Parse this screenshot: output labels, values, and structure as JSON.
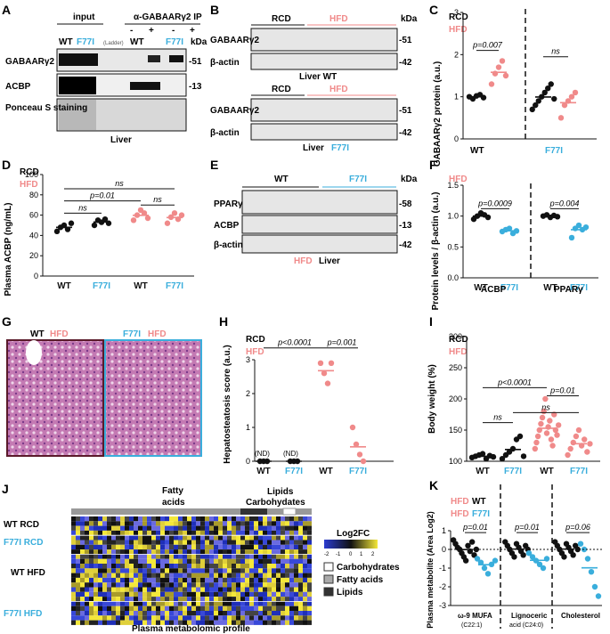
{
  "panels": {
    "A": {
      "letter": "A",
      "input": "input",
      "ip": "α-GABAARγ2 IP",
      "wt": "WT",
      "f77i": "F77I",
      "ladder": "(Ladder)",
      "kda": "kDa",
      "minus": "-",
      "plus": "+",
      "rows": [
        "GABAARγ2",
        "ACBP",
        "Ponceau S staining"
      ],
      "marks": [
        "-51",
        "-13"
      ],
      "bottom": "Liver"
    },
    "B": {
      "letter": "B",
      "rcd": "RCD",
      "hfd": "HFD",
      "kda": "kDa",
      "rows": [
        "GABAARγ2",
        "β-actin"
      ],
      "marks": [
        "-51",
        "-42"
      ],
      "top_label": "Liver WT",
      "bottom_label_a": "Liver",
      "bottom_label_b": "F77I"
    },
    "C": {
      "letter": "C",
      "legend": [
        "RCD",
        "HFD"
      ],
      "ylabel": "GABAARγ2 protein (a.u.)",
      "yticks": [
        "0",
        "1",
        "2",
        "3"
      ],
      "groups": [
        "WT",
        "F77I"
      ],
      "stats": [
        "p=0.007",
        "ns"
      ]
    },
    "D": {
      "letter": "D",
      "legend": [
        "RCD",
        "HFD"
      ],
      "ylabel": "Plasma ACBP (ng/mL)",
      "yticks": [
        "0",
        "20",
        "40",
        "60",
        "80",
        "100"
      ],
      "xlabels": [
        "WT",
        "F77I",
        "WT",
        "F77I"
      ],
      "stats": [
        "p=0.01",
        "ns",
        "ns",
        "ns"
      ]
    },
    "E": {
      "letter": "E",
      "wt": "WT",
      "f77i": "F77I",
      "kda": "kDa",
      "rows": [
        "PPARγ",
        "ACBP",
        "β-actin"
      ],
      "marks": [
        "-58",
        "-13",
        "-42"
      ],
      "bottom_a": "HFD",
      "bottom_b": "Liver"
    },
    "F": {
      "letter": "F",
      "legend": "HFD",
      "ylabel": "Protein levels / β-actin (a.u.)",
      "yticks": [
        "0.0",
        "0.5",
        "1.0",
        "1.5"
      ],
      "groups": [
        "ACBP",
        "PPARγ"
      ],
      "xlabels": [
        "WT",
        "F77I",
        "WT",
        "F77I"
      ],
      "stats": [
        "p=0.0009",
        "p=0.004"
      ]
    },
    "G": {
      "letter": "G",
      "left_a": "WT",
      "left_b": "HFD",
      "right_a": "F77I",
      "right_b": "HFD"
    },
    "H": {
      "letter": "H",
      "legend": [
        "RCD",
        "HFD"
      ],
      "ylabel": "Hepatosteatosis score (a.u.)",
      "yticks": [
        "0",
        "1",
        "2",
        "3"
      ],
      "xlabels": [
        "WT",
        "F77I",
        "WT",
        "F77I"
      ],
      "nd": "(ND)",
      "stats": [
        "p<0.0001",
        "p=0.001"
      ]
    },
    "I": {
      "letter": "I",
      "legend": [
        "RCD",
        "HFD"
      ],
      "ylabel": "Body weight (%)",
      "yticks": [
        "100",
        "150",
        "200",
        "250",
        "300"
      ],
      "xlabels": [
        "WT",
        "F77I",
        "WT",
        "F77I"
      ],
      "stats": [
        "p<0.0001",
        "p=0.01",
        "ns",
        "ns"
      ]
    },
    "J": {
      "letter": "J",
      "top1": "Fatty",
      "top2": "acids",
      "top3": "Lipids",
      "top4": "Carbohydates",
      "rows": [
        "WT RCD",
        "F77I RCD",
        "WT HFD",
        "F77I HFD"
      ],
      "legend_title": "Log2FC",
      "scale": [
        "-2",
        "-1",
        "0",
        "1",
        "2"
      ],
      "legend_items": [
        "Carbohydrates",
        "Fatty acids",
        "Lipids"
      ],
      "bottom": "Plasma metabolomic profile"
    },
    "K": {
      "letter": "K",
      "legend": [
        [
          "HFD",
          "WT"
        ],
        [
          "HFD",
          "F77I"
        ]
      ],
      "ylabel": "Plasma metabolite (Area Log2)",
      "yticks": [
        "-3",
        "-2",
        "-1",
        "0",
        "1"
      ],
      "groups": [
        [
          "ω-9 MUFA",
          "(C22:1)"
        ],
        [
          "Lignoceric",
          "acid (C24:0)"
        ],
        [
          "Cholesterol",
          ""
        ]
      ],
      "stats": [
        "p=0.01",
        "p=0.01",
        "p=0.06"
      ]
    }
  },
  "colors": {
    "blue": "#3aaedc",
    "pink": "#f08a8a",
    "black": "#111111"
  },
  "chart_data": [
    {
      "type": "scatter",
      "panel": "C",
      "ylabel": "GABAARγ2 protein (a.u.)",
      "ylim": [
        0,
        3
      ],
      "series": [
        {
          "name": "WT RCD",
          "values": [
            1.0,
            0.95,
            1.02,
            1.05,
            0.98
          ]
        },
        {
          "name": "WT HFD",
          "values": [
            1.3,
            1.55,
            1.7,
            1.85,
            1.5
          ]
        },
        {
          "name": "F77I RCD",
          "values": [
            0.7,
            0.8,
            0.9,
            1.0,
            1.1,
            1.2,
            1.3,
            0.95
          ]
        },
        {
          "name": "F77I HFD",
          "values": [
            0.5,
            0.8,
            0.9,
            1.0,
            1.1
          ]
        }
      ]
    },
    {
      "type": "scatter",
      "panel": "D",
      "ylabel": "Plasma ACBP (ng/mL)",
      "ylim": [
        0,
        100
      ],
      "series": [
        {
          "name": "WT RCD",
          "values": [
            44,
            48,
            50,
            46,
            52
          ]
        },
        {
          "name": "F77I RCD",
          "values": [
            50,
            55,
            53,
            56,
            52
          ]
        },
        {
          "name": "WT HFD",
          "values": [
            55,
            60,
            65,
            62,
            57
          ]
        },
        {
          "name": "F77I HFD",
          "values": [
            52,
            58,
            62,
            56,
            60
          ]
        }
      ]
    },
    {
      "type": "scatter",
      "panel": "F",
      "ylabel": "Protein levels / β-actin (a.u.)",
      "ylim": [
        0,
        1.5
      ],
      "series": [
        {
          "name": "ACBP WT",
          "values": [
            0.95,
            1.0,
            1.05,
            1.02,
            0.98
          ]
        },
        {
          "name": "ACBP F77I",
          "values": [
            0.75,
            0.78,
            0.8,
            0.72,
            0.76
          ]
        },
        {
          "name": "PPARγ WT",
          "values": [
            1.0,
            1.02,
            0.98,
            1.01,
            0.99
          ]
        },
        {
          "name": "PPARγ F77I",
          "values": [
            0.65,
            0.8,
            0.85,
            0.78,
            0.82
          ]
        }
      ]
    },
    {
      "type": "scatter",
      "panel": "H",
      "ylabel": "Hepatosteatosis score (a.u.)",
      "ylim": [
        0,
        3
      ],
      "series": [
        {
          "name": "WT RCD",
          "values": [
            0,
            0,
            0
          ]
        },
        {
          "name": "F77I RCD",
          "values": [
            0,
            0,
            0
          ]
        },
        {
          "name": "WT HFD",
          "values": [
            2.9,
            2.6,
            2.3,
            2.9
          ]
        },
        {
          "name": "F77I HFD",
          "values": [
            1.0,
            0.5,
            0.2,
            0.0
          ]
        }
      ]
    },
    {
      "type": "scatter",
      "panel": "I",
      "ylabel": "Body weight (%)",
      "ylim": [
        100,
        300
      ],
      "series": [
        {
          "name": "WT RCD",
          "values": [
            106,
            108,
            110,
            112,
            104,
            109,
            107
          ]
        },
        {
          "name": "F77I RCD",
          "values": [
            104,
            110,
            115,
            120,
            135,
            140,
            108
          ]
        },
        {
          "name": "WT HFD",
          "values": [
            120,
            130,
            140,
            150,
            160,
            170,
            180,
            200,
            145,
            155,
            165,
            135,
            125,
            175,
            150,
            142,
            158
          ]
        },
        {
          "name": "F77I HFD",
          "values": [
            110,
            120,
            130,
            140,
            150,
            125,
            135,
            115,
            128
          ]
        }
      ]
    },
    {
      "type": "scatter",
      "panel": "K",
      "ylabel": "Plasma metabolite (Area Log2)",
      "ylim": [
        -3,
        1
      ],
      "series": [
        {
          "name": "ω-9 MUFA WT",
          "values": [
            0.5,
            0.3,
            0.1,
            0,
            -0.2,
            -0.4,
            -0.6,
            0.2,
            -0.1,
            0.4,
            -0.3,
            0
          ]
        },
        {
          "name": "ω-9 MUFA F77I",
          "values": [
            -0.5,
            -0.7,
            -1.0,
            -1.3,
            -0.8,
            -0.6
          ]
        },
        {
          "name": "Lignoceric WT",
          "values": [
            0.4,
            0.2,
            0,
            -0.2,
            -0.4,
            0.3,
            0.1,
            -0.1,
            -0.3,
            0.2,
            0
          ]
        },
        {
          "name": "Lignoceric F77I",
          "values": [
            -0.2,
            -0.4,
            -0.6,
            -0.8,
            -1.0,
            -0.5
          ]
        },
        {
          "name": "Cholesterol WT",
          "values": [
            0.4,
            0.2,
            0,
            -0.2,
            -0.4,
            0.3,
            0.1,
            -0.1,
            -0.3,
            0.2,
            0
          ]
        },
        {
          "name": "Cholesterol F77I",
          "values": [
            0.3,
            0,
            -0.5,
            -1.2,
            -2.0,
            -2.5
          ]
        }
      ]
    }
  ]
}
